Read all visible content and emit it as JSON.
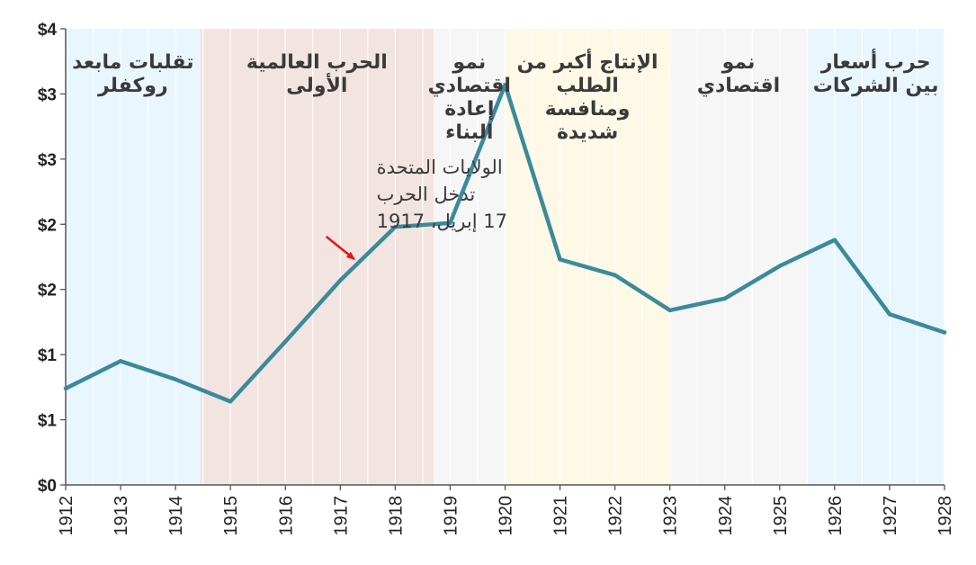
{
  "chart_data": {
    "type": "line",
    "x": [
      1912,
      1913,
      1914,
      1915,
      1916,
      1917,
      1918,
      1919,
      1920,
      1921,
      1922,
      1923,
      1924,
      1925,
      1926,
      1927,
      1928
    ],
    "series": [
      {
        "color": "#3b8a9a",
        "values": [
          0.74,
          0.95,
          0.81,
          0.64,
          1.1,
          1.57,
          1.98,
          2.01,
          3.07,
          1.73,
          1.61,
          1.34,
          1.43,
          1.68,
          1.88,
          1.31,
          1.17
        ]
      }
    ],
    "xlim": [
      1912,
      1928
    ],
    "ylim": [
      0,
      3.5
    ],
    "y_ticks": [
      {
        "value": 0,
        "label": "$0"
      },
      {
        "value": 0.5,
        "label": "$1"
      },
      {
        "value": 1.0,
        "label": "$1"
      },
      {
        "value": 1.5,
        "label": "$2"
      },
      {
        "value": 2.0,
        "label": "$2"
      },
      {
        "value": 2.5,
        "label": "$3"
      },
      {
        "value": 3.0,
        "label": "$3"
      },
      {
        "value": 3.5,
        "label": "$4"
      }
    ],
    "x_ticks": [
      "1912",
      "1913",
      "1914",
      "1915",
      "1916",
      "1917",
      "1918",
      "1919",
      "1920",
      "1921",
      "1922",
      "1923",
      "1924",
      "1925",
      "1926",
      "1927",
      "1928"
    ],
    "grid": true,
    "periods": [
      {
        "start": 1912,
        "end": 1914.45,
        "color": "#eaf6fd",
        "lines": [
          "تقلبات مابعد",
          "روكفلر"
        ]
      },
      {
        "start": 1914.45,
        "end": 1918.7,
        "color": "#f2e4e0",
        "lines": [
          "الحرب العالمية",
          "الأولى"
        ]
      },
      {
        "start": 1918.7,
        "end": 1920,
        "color": "#f6f6f6",
        "lines": [
          "نمو",
          "اقتصادي",
          "إعادة",
          "البناء"
        ]
      },
      {
        "start": 1920,
        "end": 1923,
        "color": "#fdf9e6",
        "lines": [
          "الإنتاج أكبر من",
          "الطلب",
          "ومنافسة",
          "شديدة"
        ]
      },
      {
        "start": 1923,
        "end": 1925.5,
        "color": "#f6f6f6",
        "lines": [
          "نمو",
          "اقتصادي"
        ]
      },
      {
        "start": 1925.5,
        "end": 1928,
        "color": "#eaf6fd",
        "lines": [
          "حرب أسعار",
          "بين الشركات"
        ]
      }
    ],
    "annotations": [
      {
        "lines": [
          "الولايات المتحدة",
          "تدخل الحرب",
          "17 إبريل، 1917"
        ],
        "arrow_color": "#e01818",
        "x": 1917.3,
        "y": 1.72
      }
    ]
  }
}
